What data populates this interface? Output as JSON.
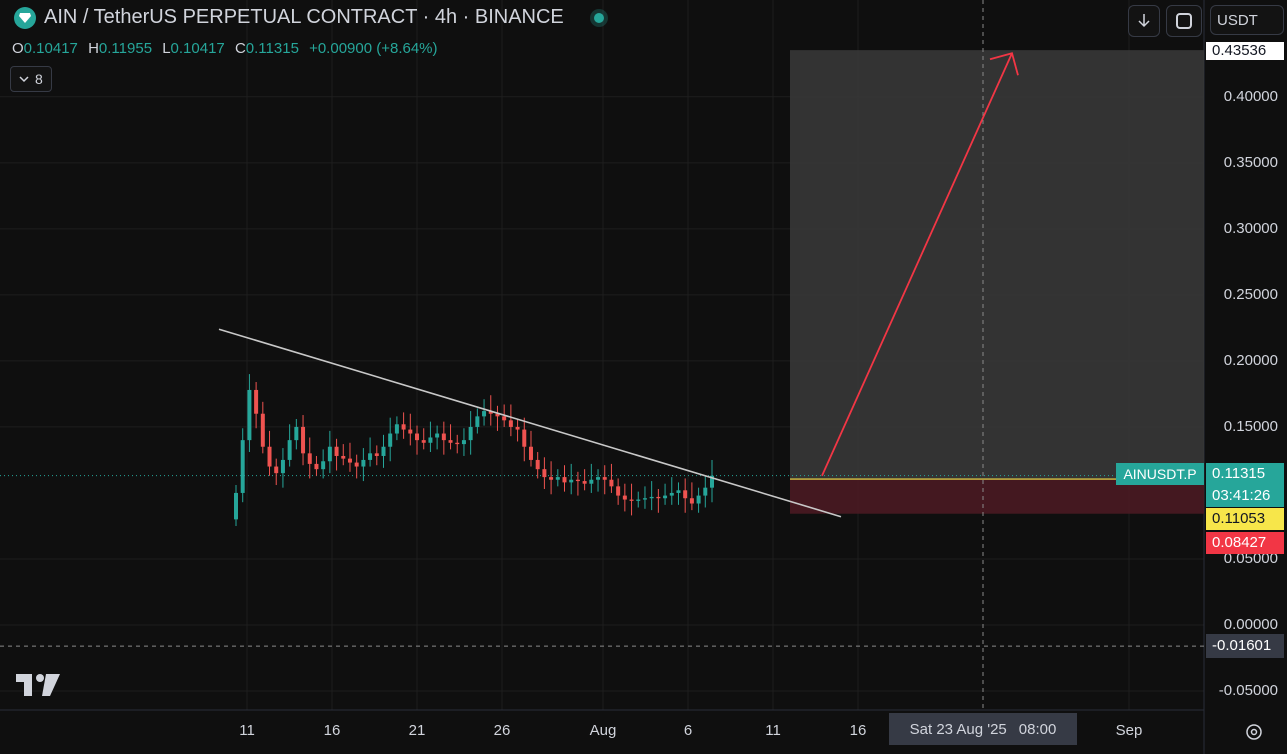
{
  "header": {
    "title": "AIN / TetherUS PERPETUAL CONTRACT · 4h · BINANCE",
    "icons": {
      "logo": "diamond-icon",
      "status": "market-open-dot"
    }
  },
  "ohlc": {
    "open_key": "O",
    "open": "0.10417",
    "high_key": "H",
    "high": "0.11955",
    "low_key": "L",
    "low": "0.10417",
    "close_key": "C",
    "close": "0.11315",
    "change": "+0.00900 (+8.64%)"
  },
  "indicators_toggle": {
    "count": "8",
    "icon": "chevron-down-icon"
  },
  "toolbar": {
    "currency": "USDT",
    "download_icon": "download-icon",
    "fullscreen_icon": "fullscreen-icon"
  },
  "price_axis": {
    "ticks": [
      "0.40000",
      "0.35000",
      "0.30000",
      "0.25000",
      "0.20000",
      "0.15000",
      "0.05000",
      "0.00000",
      "-0.05000"
    ],
    "target_label": "0.43536",
    "symbol_label": "AINUSDT.P",
    "last_price": "0.11315",
    "countdown": "03:41:26",
    "entry_label": "0.11053",
    "stop_label": "0.08427",
    "crosshair_price": "-0.01601"
  },
  "time_axis": {
    "ticks": [
      "11",
      "16",
      "21",
      "26",
      "Aug",
      "6",
      "11",
      "16",
      "Sep"
    ],
    "crosshair_date": "Sat 23 Aug '25",
    "crosshair_time": "08:00"
  },
  "colors": {
    "background": "#0f0f0f",
    "up": "#26a69a",
    "down": "#ef5350",
    "arrow": "#f23645",
    "entry": "#f7e64a",
    "target_zone": "#3a3a3a",
    "stop_zone": "#4a1a22"
  },
  "chart_data": {
    "type": "candlestick",
    "symbol": "AINUSDT.P",
    "timeframe": "4h",
    "ylim": [
      -0.05,
      0.435
    ],
    "trendline": {
      "from_value": 0.224,
      "to_value": 0.082
    },
    "position": {
      "entry": 0.11053,
      "target": 0.43536,
      "stop": 0.08427
    },
    "close_series": [
      0.1,
      0.14,
      0.178,
      0.16,
      0.135,
      0.12,
      0.115,
      0.125,
      0.14,
      0.15,
      0.13,
      0.122,
      0.118,
      0.124,
      0.135,
      0.128,
      0.126,
      0.123,
      0.12,
      0.125,
      0.13,
      0.128,
      0.135,
      0.145,
      0.152,
      0.148,
      0.145,
      0.14,
      0.138,
      0.142,
      0.145,
      0.14,
      0.138,
      0.137,
      0.14,
      0.15,
      0.158,
      0.162,
      0.16,
      0.158,
      0.155,
      0.15,
      0.148,
      0.135,
      0.125,
      0.118,
      0.112,
      0.11,
      0.112,
      0.108,
      0.11,
      0.109,
      0.107,
      0.11,
      0.112,
      0.11,
      0.105,
      0.098,
      0.095,
      0.094,
      0.095,
      0.096,
      0.097,
      0.096,
      0.098,
      0.1,
      0.102,
      0.096,
      0.092,
      0.098,
      0.104,
      0.113
    ]
  }
}
